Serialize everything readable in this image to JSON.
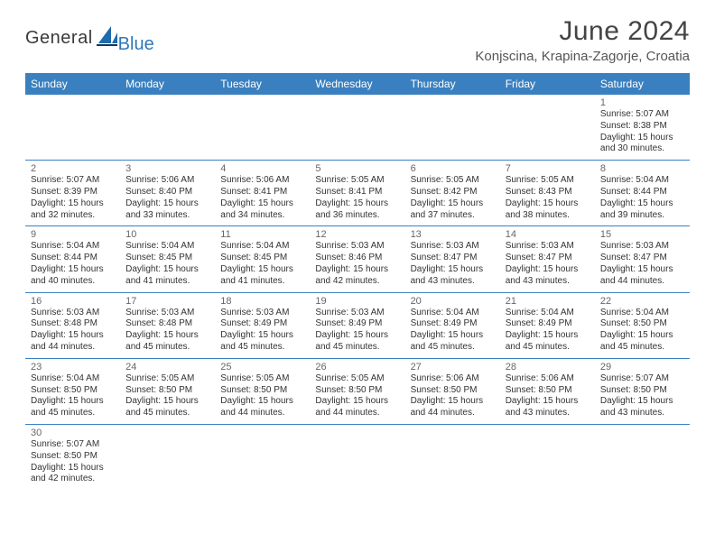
{
  "brand": {
    "part1": "General",
    "part2": "Blue"
  },
  "title": "June 2024",
  "location": "Konjscina, Krapina-Zagorje, Croatia",
  "colors": {
    "header_bg": "#3a80c0",
    "header_text": "#ffffff",
    "row_border": "#3a80c0",
    "page_bg": "#ffffff",
    "brand_blue": "#2f78b7",
    "brand_dark": "#3a3a3a",
    "title_color": "#444444",
    "location_color": "#555555",
    "daynum_color": "#666666",
    "body_text": "#333333"
  },
  "typography": {
    "title_fontsize": 30,
    "location_fontsize": 15,
    "header_fontsize": 12,
    "daynum_fontsize": 11,
    "body_fontsize": 10,
    "font_family": "Arial"
  },
  "calendar": {
    "type": "table",
    "columns": [
      "Sunday",
      "Monday",
      "Tuesday",
      "Wednesday",
      "Thursday",
      "Friday",
      "Saturday"
    ],
    "start_weekday_index": 6,
    "days": [
      {
        "n": 1,
        "sunrise": "5:07 AM",
        "sunset": "8:38 PM",
        "daylight": "15 hours and 30 minutes."
      },
      {
        "n": 2,
        "sunrise": "5:07 AM",
        "sunset": "8:39 PM",
        "daylight": "15 hours and 32 minutes."
      },
      {
        "n": 3,
        "sunrise": "5:06 AM",
        "sunset": "8:40 PM",
        "daylight": "15 hours and 33 minutes."
      },
      {
        "n": 4,
        "sunrise": "5:06 AM",
        "sunset": "8:41 PM",
        "daylight": "15 hours and 34 minutes."
      },
      {
        "n": 5,
        "sunrise": "5:05 AM",
        "sunset": "8:41 PM",
        "daylight": "15 hours and 36 minutes."
      },
      {
        "n": 6,
        "sunrise": "5:05 AM",
        "sunset": "8:42 PM",
        "daylight": "15 hours and 37 minutes."
      },
      {
        "n": 7,
        "sunrise": "5:05 AM",
        "sunset": "8:43 PM",
        "daylight": "15 hours and 38 minutes."
      },
      {
        "n": 8,
        "sunrise": "5:04 AM",
        "sunset": "8:44 PM",
        "daylight": "15 hours and 39 minutes."
      },
      {
        "n": 9,
        "sunrise": "5:04 AM",
        "sunset": "8:44 PM",
        "daylight": "15 hours and 40 minutes."
      },
      {
        "n": 10,
        "sunrise": "5:04 AM",
        "sunset": "8:45 PM",
        "daylight": "15 hours and 41 minutes."
      },
      {
        "n": 11,
        "sunrise": "5:04 AM",
        "sunset": "8:45 PM",
        "daylight": "15 hours and 41 minutes."
      },
      {
        "n": 12,
        "sunrise": "5:03 AM",
        "sunset": "8:46 PM",
        "daylight": "15 hours and 42 minutes."
      },
      {
        "n": 13,
        "sunrise": "5:03 AM",
        "sunset": "8:47 PM",
        "daylight": "15 hours and 43 minutes."
      },
      {
        "n": 14,
        "sunrise": "5:03 AM",
        "sunset": "8:47 PM",
        "daylight": "15 hours and 43 minutes."
      },
      {
        "n": 15,
        "sunrise": "5:03 AM",
        "sunset": "8:47 PM",
        "daylight": "15 hours and 44 minutes."
      },
      {
        "n": 16,
        "sunrise": "5:03 AM",
        "sunset": "8:48 PM",
        "daylight": "15 hours and 44 minutes."
      },
      {
        "n": 17,
        "sunrise": "5:03 AM",
        "sunset": "8:48 PM",
        "daylight": "15 hours and 45 minutes."
      },
      {
        "n": 18,
        "sunrise": "5:03 AM",
        "sunset": "8:49 PM",
        "daylight": "15 hours and 45 minutes."
      },
      {
        "n": 19,
        "sunrise": "5:03 AM",
        "sunset": "8:49 PM",
        "daylight": "15 hours and 45 minutes."
      },
      {
        "n": 20,
        "sunrise": "5:04 AM",
        "sunset": "8:49 PM",
        "daylight": "15 hours and 45 minutes."
      },
      {
        "n": 21,
        "sunrise": "5:04 AM",
        "sunset": "8:49 PM",
        "daylight": "15 hours and 45 minutes."
      },
      {
        "n": 22,
        "sunrise": "5:04 AM",
        "sunset": "8:50 PM",
        "daylight": "15 hours and 45 minutes."
      },
      {
        "n": 23,
        "sunrise": "5:04 AM",
        "sunset": "8:50 PM",
        "daylight": "15 hours and 45 minutes."
      },
      {
        "n": 24,
        "sunrise": "5:05 AM",
        "sunset": "8:50 PM",
        "daylight": "15 hours and 45 minutes."
      },
      {
        "n": 25,
        "sunrise": "5:05 AM",
        "sunset": "8:50 PM",
        "daylight": "15 hours and 44 minutes."
      },
      {
        "n": 26,
        "sunrise": "5:05 AM",
        "sunset": "8:50 PM",
        "daylight": "15 hours and 44 minutes."
      },
      {
        "n": 27,
        "sunrise": "5:06 AM",
        "sunset": "8:50 PM",
        "daylight": "15 hours and 44 minutes."
      },
      {
        "n": 28,
        "sunrise": "5:06 AM",
        "sunset": "8:50 PM",
        "daylight": "15 hours and 43 minutes."
      },
      {
        "n": 29,
        "sunrise": "5:07 AM",
        "sunset": "8:50 PM",
        "daylight": "15 hours and 43 minutes."
      },
      {
        "n": 30,
        "sunrise": "5:07 AM",
        "sunset": "8:50 PM",
        "daylight": "15 hours and 42 minutes."
      }
    ],
    "labels": {
      "sunrise": "Sunrise:",
      "sunset": "Sunset:",
      "daylight": "Daylight:"
    }
  }
}
